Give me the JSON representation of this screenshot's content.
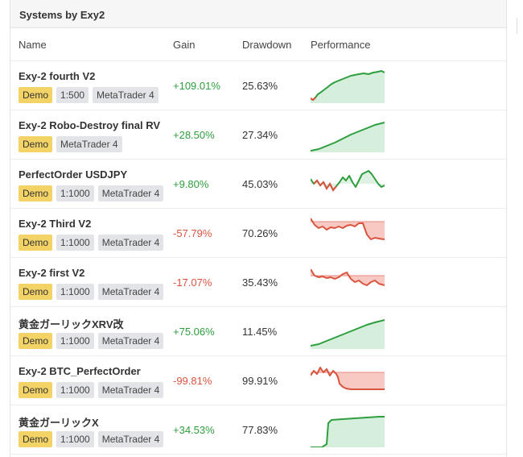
{
  "panel": {
    "title": "Systems by Exy2"
  },
  "columns": {
    "name": "Name",
    "gain": "Gain",
    "drawdown": "Drawdown",
    "performance": "Performance"
  },
  "colors": {
    "positive": "#2e9e3e",
    "negative": "#d9543f",
    "demo_tag": "#f3d266",
    "tag": "#e2e4e8"
  },
  "systems": [
    {
      "name": "Exy-2 fourth V2",
      "tags": [
        "Demo",
        "1:500",
        "MetaTrader 4"
      ],
      "gain": "+109.01%",
      "gain_sign": "pos",
      "drawdown": "25.63%"
    },
    {
      "name": "Exy-2 Robo-Destroy final RV",
      "tags": [
        "Demo",
        "MetaTrader 4"
      ],
      "gain": "+28.50%",
      "gain_sign": "pos",
      "drawdown": "27.34%"
    },
    {
      "name": "PerfectOrder USDJPY",
      "tags": [
        "Demo",
        "1:1000",
        "MetaTrader 4"
      ],
      "gain": "+9.80%",
      "gain_sign": "pos",
      "drawdown": "45.03%"
    },
    {
      "name": "Exy-2 Third V2",
      "tags": [
        "Demo",
        "1:1000",
        "MetaTrader 4"
      ],
      "gain": "-57.79%",
      "gain_sign": "neg",
      "drawdown": "70.26%"
    },
    {
      "name": "Exy-2 first V2",
      "tags": [
        "Demo",
        "1:1000",
        "MetaTrader 4"
      ],
      "gain": "-17.07%",
      "gain_sign": "neg",
      "drawdown": "35.43%"
    },
    {
      "name": "黄金ガーリックXRV改",
      "tags": [
        "Demo",
        "1:1000",
        "MetaTrader 4"
      ],
      "gain": "+75.06%",
      "gain_sign": "pos",
      "drawdown": "11.45%"
    },
    {
      "name": "Exy-2 BTC_PerfectOrder",
      "tags": [
        "Demo",
        "1:1000",
        "MetaTrader 4"
      ],
      "gain": "-99.81%",
      "gain_sign": "neg",
      "drawdown": "99.91%"
    },
    {
      "name": "黄金ガーリックX",
      "tags": [
        "Demo",
        "1:1000",
        "MetaTrader 4"
      ],
      "gain": "+34.53%",
      "gain_sign": "pos",
      "drawdown": "77.83%"
    }
  ]
}
